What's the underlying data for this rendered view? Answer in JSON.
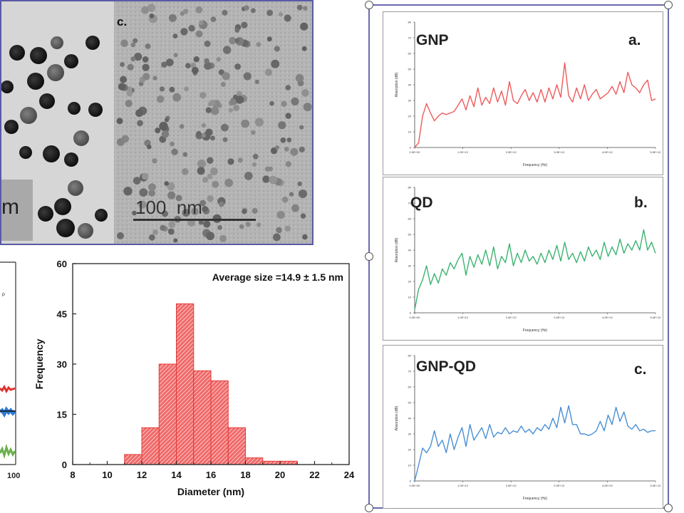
{
  "tem_panel": {
    "left_scale_partial": "m",
    "right_label": "c.",
    "scale_bar_label": "100  nm"
  },
  "left_partial_plot": {
    "tick_label": "100"
  },
  "chart_data": [
    {
      "type": "bar",
      "title": "",
      "annotation": "Average size =14.9 ± 1.5 nm",
      "xlabel": "Diameter (nm)",
      "ylabel": "Frequency",
      "xlim": [
        8,
        24
      ],
      "ylim": [
        0,
        60
      ],
      "xticks": [
        "8",
        "10",
        "12",
        "14",
        "16",
        "18",
        "20",
        "22",
        "24"
      ],
      "yticks": [
        "0",
        "15",
        "30",
        "45",
        "60"
      ],
      "bin_width": 1,
      "bins": [
        11,
        12,
        13,
        14,
        15,
        16,
        17,
        18,
        19,
        20
      ],
      "values": [
        3,
        11,
        30,
        48,
        28,
        25,
        11,
        2,
        1,
        1
      ],
      "color": "#e53935"
    },
    {
      "type": "line",
      "panel_label": "GNP",
      "panel_letter": "a.",
      "xlabel": "Frequency (Hz)",
      "ylabel": "Absorption (dB)",
      "color": "#ee5a5a",
      "xlim": [
        0,
        5
      ],
      "ylim": [
        0,
        80
      ],
      "x_tick_labels": [
        "0.0E+00",
        "1.0E+12",
        "2.0E+12",
        "3.0E+12",
        "4.0E+12",
        "5.0E+12"
      ],
      "y_tick_labels": [
        "0",
        "10",
        "20",
        "30",
        "40",
        "50",
        "60",
        "70",
        "80"
      ],
      "values": [
        0,
        3,
        20,
        28,
        22,
        17,
        20,
        22,
        21,
        22,
        23,
        27,
        31,
        24,
        33,
        26,
        38,
        27,
        32,
        28,
        38,
        29,
        36,
        27,
        42,
        30,
        28,
        33,
        37,
        30,
        35,
        29,
        37,
        29,
        38,
        31,
        40,
        32,
        54,
        33,
        29,
        38,
        31,
        40,
        30,
        34,
        37,
        31,
        33,
        35,
        39,
        34,
        42,
        35,
        48,
        40,
        38,
        35,
        40,
        43,
        30,
        31
      ]
    },
    {
      "type": "line",
      "panel_label": "QD",
      "panel_letter": "b.",
      "xlabel": "Frequency (Hz)",
      "ylabel": "Absorption (dB)",
      "color": "#3cb371",
      "xlim": [
        0,
        5
      ],
      "ylim": [
        0,
        80
      ],
      "x_tick_labels": [
        "0.0E+00",
        "1.0E+12",
        "2.0E+12",
        "3.0E+12",
        "4.0E+12",
        "5.0E+12"
      ],
      "y_tick_labels": [
        "0",
        "10",
        "20",
        "30",
        "40",
        "50",
        "60",
        "70",
        "80"
      ],
      "values": [
        2,
        15,
        21,
        30,
        18,
        25,
        19,
        28,
        24,
        32,
        28,
        34,
        38,
        24,
        36,
        29,
        37,
        31,
        40,
        30,
        42,
        28,
        36,
        32,
        44,
        30,
        38,
        32,
        40,
        33,
        36,
        31,
        38,
        32,
        40,
        34,
        43,
        33,
        45,
        34,
        38,
        32,
        39,
        33,
        42,
        36,
        40,
        34,
        45,
        36,
        42,
        37,
        47,
        38,
        44,
        40,
        46,
        40,
        53,
        40,
        45,
        38
      ]
    },
    {
      "type": "line",
      "panel_label": "GNP-QD",
      "panel_letter": "c.",
      "xlabel": "Frequency (Hz)",
      "ylabel": "Absorption (dB)",
      "color": "#4a8fd4",
      "xlim": [
        0,
        5
      ],
      "ylim": [
        0,
        80
      ],
      "x_tick_labels": [
        "0.0E+00",
        "1.0E+12",
        "2.0E+12",
        "3.0E+12",
        "4.0E+12",
        "5.0E+12"
      ],
      "y_tick_labels": [
        "0",
        "10",
        "20",
        "30",
        "40",
        "50",
        "60",
        "70",
        "80"
      ],
      "values": [
        0,
        10,
        21,
        18,
        22,
        32,
        22,
        26,
        18,
        30,
        20,
        28,
        34,
        22,
        36,
        26,
        30,
        34,
        27,
        36,
        28,
        31,
        30,
        34,
        30,
        32,
        31,
        35,
        31,
        33,
        30,
        34,
        32,
        36,
        33,
        40,
        34,
        47,
        37,
        48,
        36,
        36,
        30,
        30,
        29,
        30,
        32,
        38,
        32,
        42,
        36,
        47,
        38,
        44,
        35,
        33,
        36,
        32,
        33,
        31,
        32,
        32
      ]
    }
  ]
}
